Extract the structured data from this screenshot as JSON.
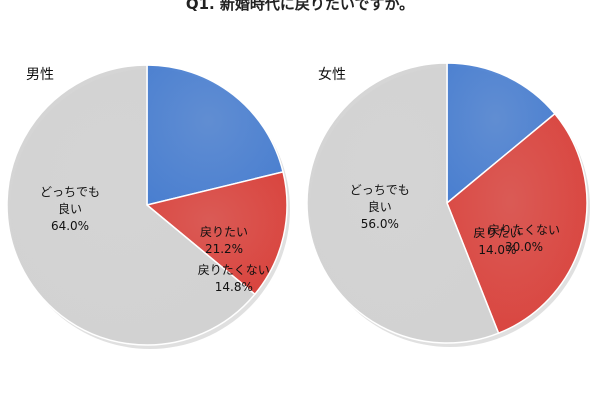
{
  "title": "Q1. 新婚時代に戻りたいですか。",
  "colors": {
    "back": "#4a7fd0",
    "notBack": "#d9433d",
    "either": "#d2d2d2"
  },
  "chart_data": [
    {
      "type": "pie",
      "title": "男性",
      "slices": [
        {
          "label": "戻りたい",
          "value": 21.2,
          "display": "21.2%",
          "color": "#4a7fd0"
        },
        {
          "label": "戻りたくない",
          "value": 14.8,
          "display": "14.8%",
          "color": "#d9433d"
        },
        {
          "label": "どっちでも良い",
          "value": 64.0,
          "display": "64.0%",
          "color": "#d2d2d2"
        }
      ]
    },
    {
      "type": "pie",
      "title": "女性",
      "slices": [
        {
          "label": "戻りたい",
          "value": 14.0,
          "display": "14.0%",
          "color": "#4a7fd0"
        },
        {
          "label": "戻りたくない",
          "value": 30.0,
          "display": "30.0%",
          "color": "#d9433d"
        },
        {
          "label": "どっちでも良い",
          "value": 56.0,
          "display": "56.0%",
          "color": "#d2d2d2"
        }
      ]
    }
  ]
}
